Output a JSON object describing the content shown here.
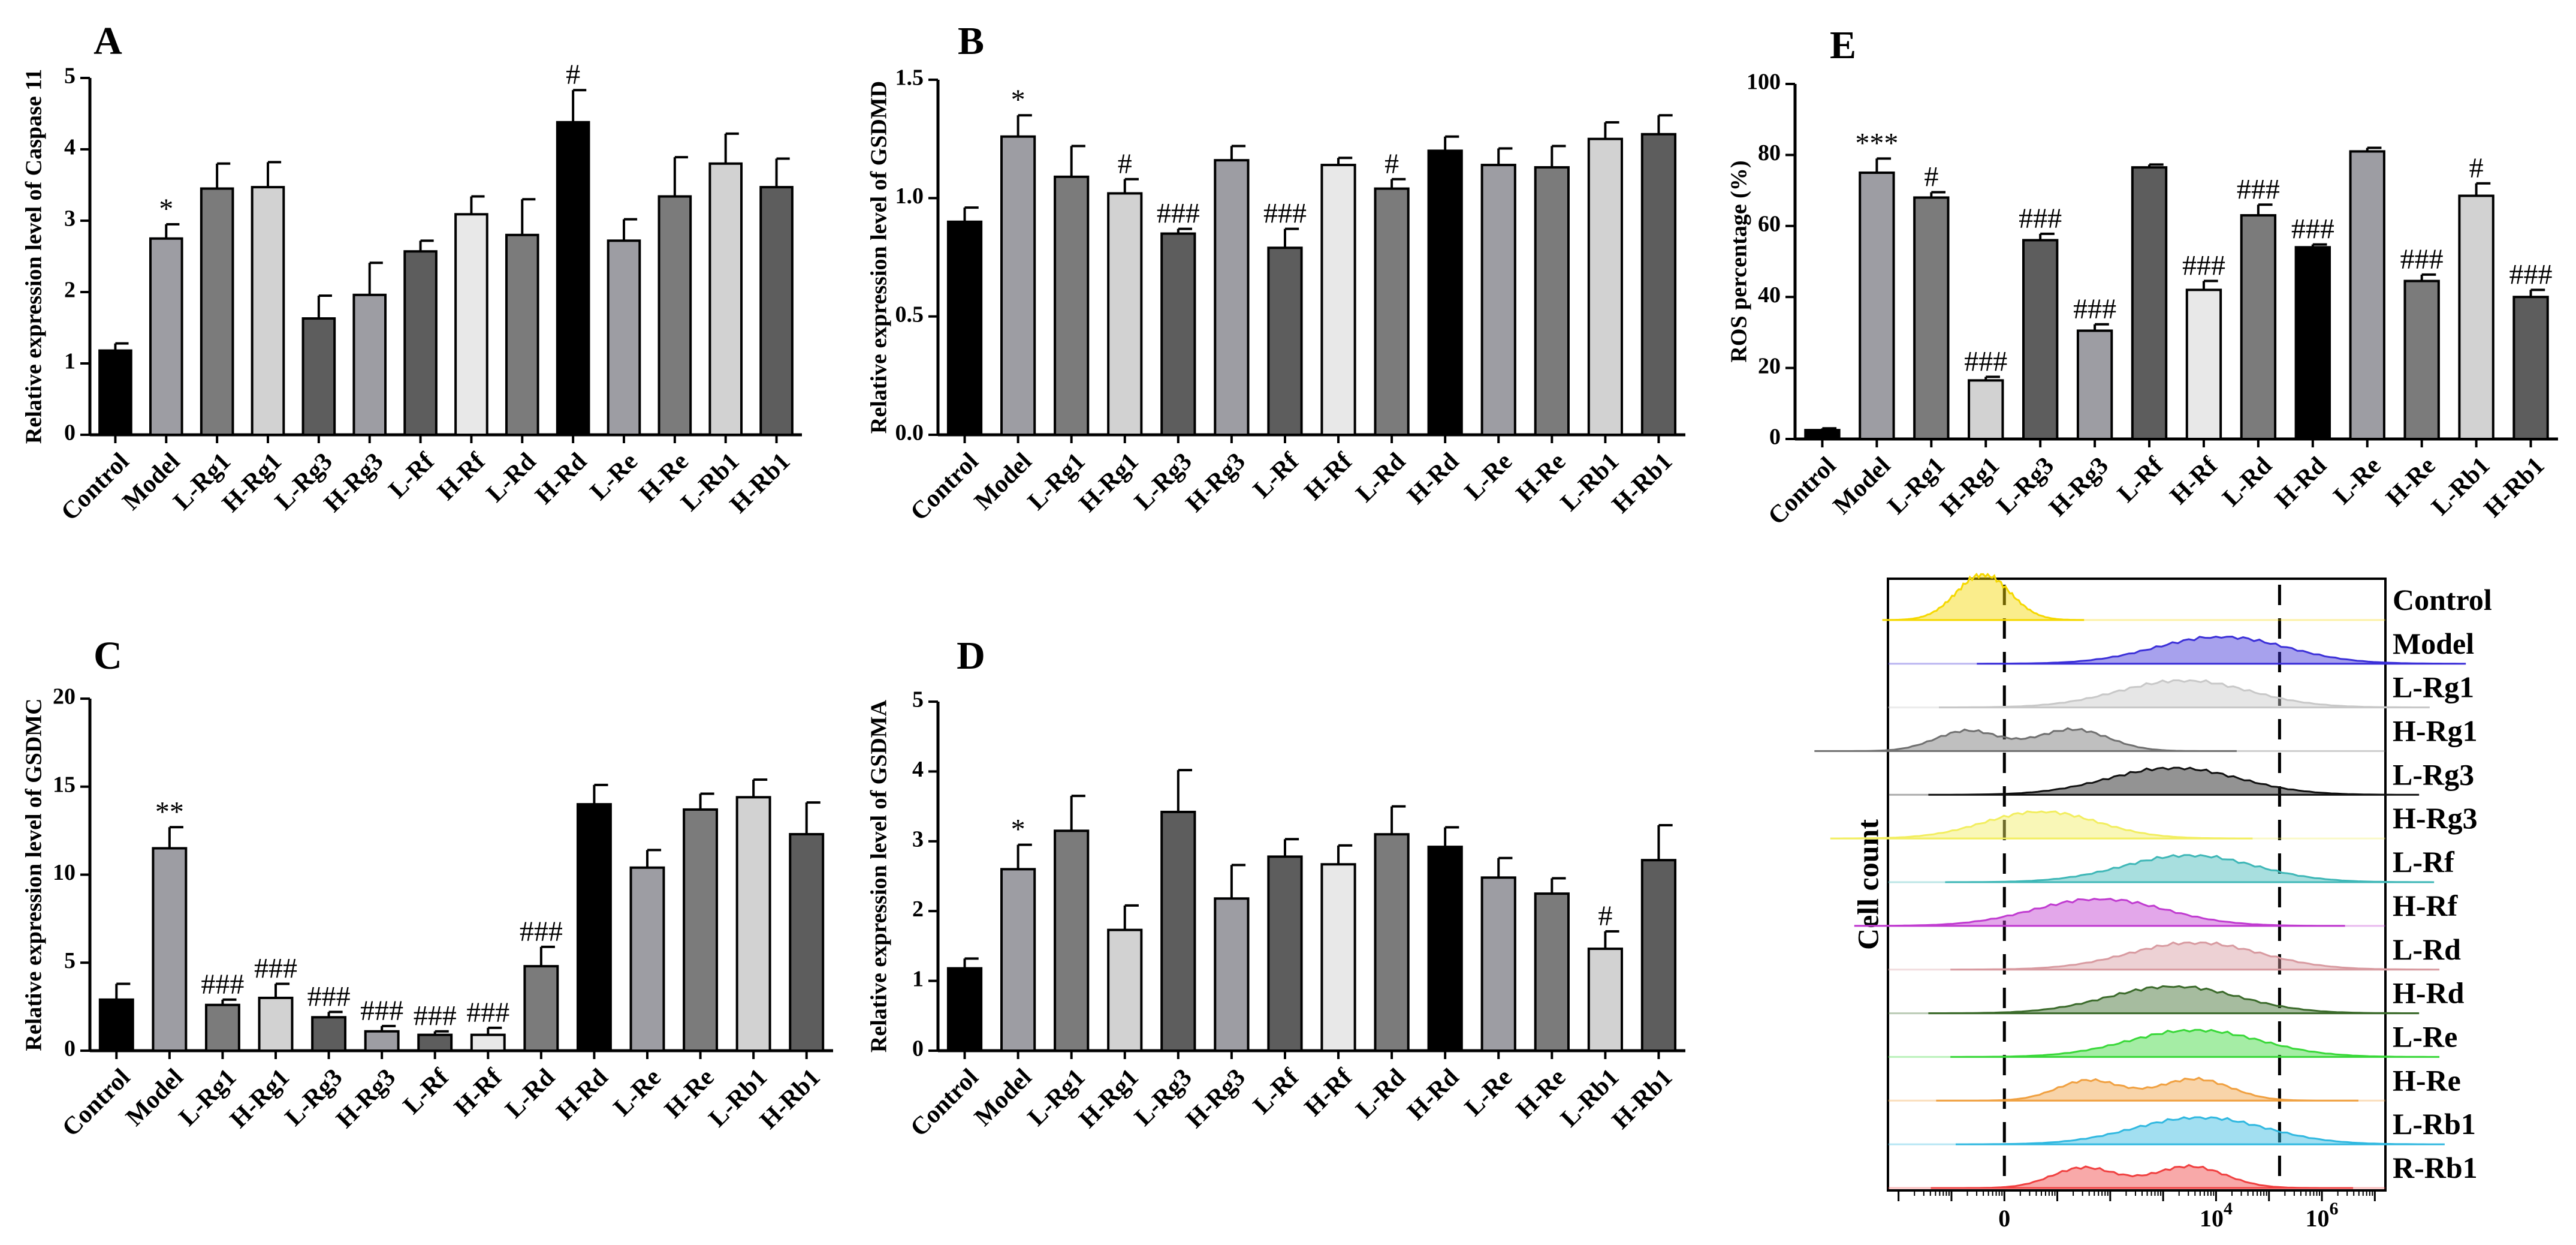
{
  "chart_data": [
    {
      "id": "A",
      "type": "bar",
      "panel_label": "A",
      "ylabel": "Relative expression level of Caspase 11",
      "ylim": [
        0,
        5
      ],
      "yticks": [
        0,
        1,
        2,
        3,
        4,
        5
      ],
      "categories": [
        "Control",
        "Model",
        "L-Rg1",
        "H-Rg1",
        "L-Rg3",
        "H-Rg3",
        "L-Rf",
        "H-Rf",
        "L-Rd",
        "H-Rd",
        "L-Re",
        "H-Re",
        "L-Rb1",
        "H-Rb1"
      ],
      "values": [
        1.18,
        2.75,
        3.45,
        3.47,
        1.63,
        1.96,
        2.57,
        3.09,
        2.8,
        4.38,
        2.72,
        3.34,
        3.8,
        3.47
      ],
      "errors": [
        0.1,
        0.2,
        0.35,
        0.35,
        0.32,
        0.45,
        0.15,
        0.25,
        0.5,
        0.45,
        0.3,
        0.55,
        0.42,
        0.4
      ],
      "annotations": [
        "",
        "*",
        "",
        "",
        "",
        "",
        "",
        "",
        "",
        "#",
        "",
        "",
        "",
        ""
      ],
      "colors": [
        "#000000",
        "#9d9da3",
        "#7b7b7b",
        "#d2d2d2",
        "#5d5d5d",
        "#9d9da3",
        "#5d5d5d",
        "#e8e8e8",
        "#7b7b7b",
        "#000000",
        "#9d9da3",
        "#7b7b7b",
        "#d2d2d2",
        "#5d5d5d"
      ]
    },
    {
      "id": "B",
      "type": "bar",
      "panel_label": "B",
      "ylabel": "Relative expression level of GSDMD",
      "ylim": [
        0,
        1.5
      ],
      "yticks": [
        "0.0",
        "0.5",
        "1.0",
        "1.5"
      ],
      "categories": [
        "Control",
        "Model",
        "L-Rg1",
        "H-Rg1",
        "L-Rg3",
        "H-Rg3",
        "L-Rf",
        "H-Rf",
        "L-Rd",
        "H-Rd",
        "L-Re",
        "H-Re",
        "L-Rb1",
        "H-Rb1"
      ],
      "values": [
        0.9,
        1.26,
        1.09,
        1.02,
        0.85,
        1.16,
        0.79,
        1.14,
        1.04,
        1.2,
        1.14,
        1.13,
        1.25,
        1.27
      ],
      "errors": [
        0.06,
        0.09,
        0.13,
        0.06,
        0.02,
        0.06,
        0.08,
        0.03,
        0.04,
        0.06,
        0.07,
        0.09,
        0.07,
        0.08
      ],
      "annotations": [
        "",
        "*",
        "",
        "#",
        "###",
        "",
        "###",
        "",
        "#",
        "",
        "",
        "",
        "",
        ""
      ],
      "colors": [
        "#000000",
        "#9d9da3",
        "#7b7b7b",
        "#d2d2d2",
        "#5d5d5d",
        "#9d9da3",
        "#5d5d5d",
        "#e8e8e8",
        "#7b7b7b",
        "#000000",
        "#9d9da3",
        "#7b7b7b",
        "#d2d2d2",
        "#5d5d5d"
      ]
    },
    {
      "id": "C",
      "type": "bar",
      "panel_label": "C",
      "ylabel": "Relative expression level of GSDMC",
      "ylim": [
        0,
        20
      ],
      "yticks": [
        0,
        5,
        10,
        15,
        20
      ],
      "categories": [
        "Control",
        "Model",
        "L-Rg1",
        "H-Rg1",
        "L-Rg3",
        "H-Rg3",
        "L-Rf",
        "H-Rf",
        "L-Rd",
        "H-Rd",
        "L-Re",
        "H-Re",
        "L-Rb1",
        "H-Rb1"
      ],
      "values": [
        2.9,
        11.5,
        2.6,
        3.0,
        1.9,
        1.1,
        0.9,
        0.9,
        4.8,
        14.0,
        10.4,
        13.7,
        14.4,
        12.3
      ],
      "errors": [
        0.9,
        1.2,
        0.3,
        0.8,
        0.3,
        0.3,
        0.2,
        0.4,
        1.1,
        1.1,
        1.0,
        0.9,
        1.0,
        1.8
      ],
      "annotations": [
        "",
        "**",
        "###",
        "###",
        "###",
        "###",
        "###",
        "###",
        "###",
        "",
        "",
        "",
        "",
        ""
      ],
      "colors": [
        "#000000",
        "#9d9da3",
        "#7b7b7b",
        "#d2d2d2",
        "#5d5d5d",
        "#9d9da3",
        "#5d5d5d",
        "#e8e8e8",
        "#7b7b7b",
        "#000000",
        "#9d9da3",
        "#7b7b7b",
        "#d2d2d2",
        "#5d5d5d"
      ]
    },
    {
      "id": "D",
      "type": "bar",
      "panel_label": "D",
      "ylabel": "Relative expression level of GSDMA",
      "ylim": [
        0,
        5
      ],
      "yticks": [
        0,
        1,
        2,
        3,
        4,
        5
      ],
      "categories": [
        "Control",
        "Model",
        "L-Rg1",
        "H-Rg1",
        "L-Rg3",
        "H-Rg3",
        "L-Rf",
        "H-Rf",
        "L-Rd",
        "H-Rd",
        "L-Re",
        "H-Re",
        "L-Rb1",
        "H-Rb1"
      ],
      "values": [
        1.18,
        2.6,
        3.15,
        1.73,
        3.42,
        2.18,
        2.78,
        2.67,
        3.1,
        2.92,
        2.48,
        2.25,
        1.46,
        2.73
      ],
      "errors": [
        0.14,
        0.35,
        0.5,
        0.35,
        0.6,
        0.48,
        0.25,
        0.27,
        0.4,
        0.28,
        0.28,
        0.22,
        0.25,
        0.5
      ],
      "annotations": [
        "",
        "*",
        "",
        "",
        "",
        "",
        "",
        "",
        "",
        "",
        "",
        "",
        "#",
        ""
      ],
      "colors": [
        "#000000",
        "#9d9da3",
        "#7b7b7b",
        "#d2d2d2",
        "#5d5d5d",
        "#9d9da3",
        "#5d5d5d",
        "#e8e8e8",
        "#7b7b7b",
        "#000000",
        "#9d9da3",
        "#7b7b7b",
        "#d2d2d2",
        "#5d5d5d"
      ]
    },
    {
      "id": "E",
      "type": "bar",
      "panel_label": "E",
      "ylabel": "ROS percentage (%)",
      "ylim": [
        0,
        100
      ],
      "yticks": [
        0,
        20,
        40,
        60,
        80,
        100
      ],
      "categories": [
        "Control",
        "Model",
        "L-Rg1",
        "H-Rg1",
        "L-Rg3",
        "H-Rg3",
        "L-Rf",
        "H-Rf",
        "L-Rd",
        "H-Rd",
        "L-Re",
        "H-Re",
        "L-Rb1",
        "H-Rb1"
      ],
      "values": [
        2.5,
        75.0,
        68.0,
        16.5,
        56.0,
        30.5,
        76.5,
        42.0,
        63.0,
        54.0,
        81.0,
        44.5,
        68.5,
        40.0
      ],
      "errors": [
        0.5,
        4.0,
        1.5,
        1.0,
        1.8,
        1.8,
        0.8,
        2.5,
        3.0,
        0.8,
        1.0,
        1.8,
        3.5,
        2.0
      ],
      "annotations": [
        "",
        "***",
        "#",
        "###",
        "###",
        "###",
        "",
        "###",
        "###",
        "###",
        "",
        "###",
        "#",
        "###"
      ],
      "colors": [
        "#000000",
        "#9d9da3",
        "#7b7b7b",
        "#d2d2d2",
        "#5d5d5d",
        "#9d9da3",
        "#5d5d5d",
        "#e8e8e8",
        "#7b7b7b",
        "#000000",
        "#9d9da3",
        "#7b7b7b",
        "#d2d2d2",
        "#5d5d5d"
      ]
    },
    {
      "id": "flow",
      "type": "histogram-overlay",
      "ylabel": "Cell count",
      "xticks": [
        "0",
        "10",
        "4",
        "10",
        "6"
      ],
      "xtick_text": [
        {
          "base": "0",
          "exp": ""
        },
        {
          "base": "10",
          "exp": "4"
        },
        {
          "base": "10",
          "exp": "6"
        }
      ],
      "groups": [
        "Control",
        "Model",
        "L-Rg1",
        "H-Rg1",
        "L-Rg3",
        "H-Rg3",
        "L-Rf",
        "H-Rf",
        "L-Rd",
        "H-Rd",
        "L-Re",
        "H-Re",
        "L-Rb1",
        "R-Rb1"
      ],
      "group_colors": [
        "#f5d800",
        "#3b2fd8",
        "#c8c8c8",
        "#707070",
        "#101010",
        "#f2ee60",
        "#3fb7b7",
        "#c03bd0",
        "#d89aa0",
        "#3a6a2a",
        "#38d838",
        "#f0a040",
        "#30b8e0",
        "#f04040"
      ],
      "gate_positions_decades": [
        0.0,
        5.2
      ],
      "peak_centers_decades": [
        -0.4,
        4.1,
        3.4,
        0.4,
        3.2,
        0.7,
        3.5,
        1.8,
        3.6,
        3.2,
        3.6,
        2.7,
        3.7,
        2.6
      ]
    }
  ]
}
